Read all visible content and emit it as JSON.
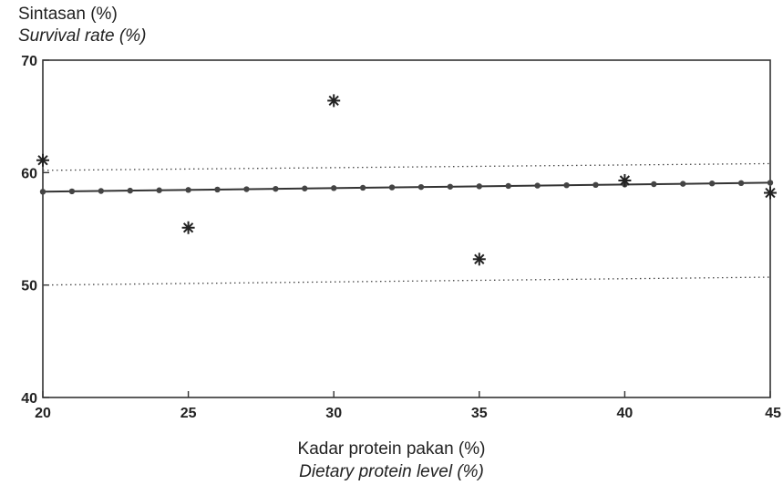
{
  "chart_data": {
    "type": "scatter",
    "ylabel": "Sintasan (%)",
    "ylabel_en": "Survival rate (%)",
    "xlabel": "Kadar protein pakan (%)",
    "xlabel_en": "Dietary protein level (%)",
    "xlim": [
      20,
      45
    ],
    "ylim": [
      40,
      70
    ],
    "x_ticks": [
      "20",
      "25",
      "30",
      "35",
      "40",
      "45"
    ],
    "y_ticks": [
      "40",
      "50",
      "60",
      "70"
    ],
    "grid": false,
    "observed": {
      "marker": "star",
      "x": [
        20,
        25,
        30,
        35,
        40,
        45
      ],
      "y": [
        61.1,
        55.1,
        66.4,
        52.3,
        59.3,
        58.2
      ]
    },
    "fitted_line": {
      "style": "solid with dot markers",
      "x": [
        20,
        45
      ],
      "y": [
        58.3,
        59.1
      ]
    },
    "confidence_bands": [
      {
        "style": "dotted",
        "x": [
          20,
          45
        ],
        "y": [
          60.2,
          60.8
        ]
      },
      {
        "style": "dotted",
        "x": [
          20,
          45
        ],
        "y": [
          50.0,
          50.7
        ]
      }
    ]
  }
}
